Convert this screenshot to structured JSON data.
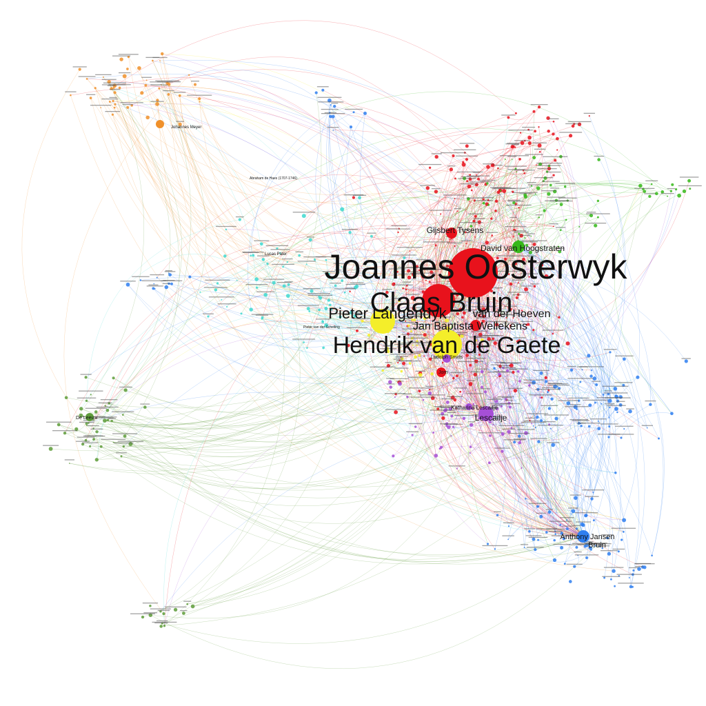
{
  "palette": {
    "red": "#e8121c",
    "yellow": "#f4ee2a",
    "green": "#36b81a",
    "blue": "#2f7ff0",
    "purple": "#a64fd6",
    "cyan": "#3fd9d0",
    "orange": "#f0902a",
    "olive": "#5e9c3a",
    "pink": "#e06a8c",
    "label": "#111111"
  },
  "labels": {
    "oosterwyk": "Joannes Oosterwyk",
    "bruin": "Claas Bruin",
    "gaete": "Hendrik van de Gaete",
    "langendyk": "Pieter Langendyk",
    "hoeven": "van der Hoeven",
    "willekens": "Jan Baptista Wellekens",
    "hoogstraten": "David van Hoogstraten",
    "tyssens": "Gijsbert Tysens",
    "lescailje_name": "Lescailje",
    "katharina": "Katharina Lescailje",
    "jansen": "Anthony Jansen",
    "bruin2": "Bruin",
    "meyer": "Johannes Meyer",
    "haes": "Abraham de Haes (1707-1746)",
    "lucas": "Lucas Pater",
    "leeuwen": "De Leeuw",
    "schelling": "Pieter van der Schelling",
    "amsterdam": "Hendrik Snakenburg",
    "jorn": "Jorn",
    "ludolph": "Ludolph Smids",
    "hermanus": "Hermanus van den Burg",
    "smits": "Dirk Smits",
    "kruis": "Hermanus Meijer",
    "rooden": "Adriaan van Royen",
    "paets": "Frans de Haes",
    "hero": "Petrus Hofstede",
    "vries": "Nicolaas Verburg",
    "sweerts": "Jan Jacob Mauricius"
  }
}
